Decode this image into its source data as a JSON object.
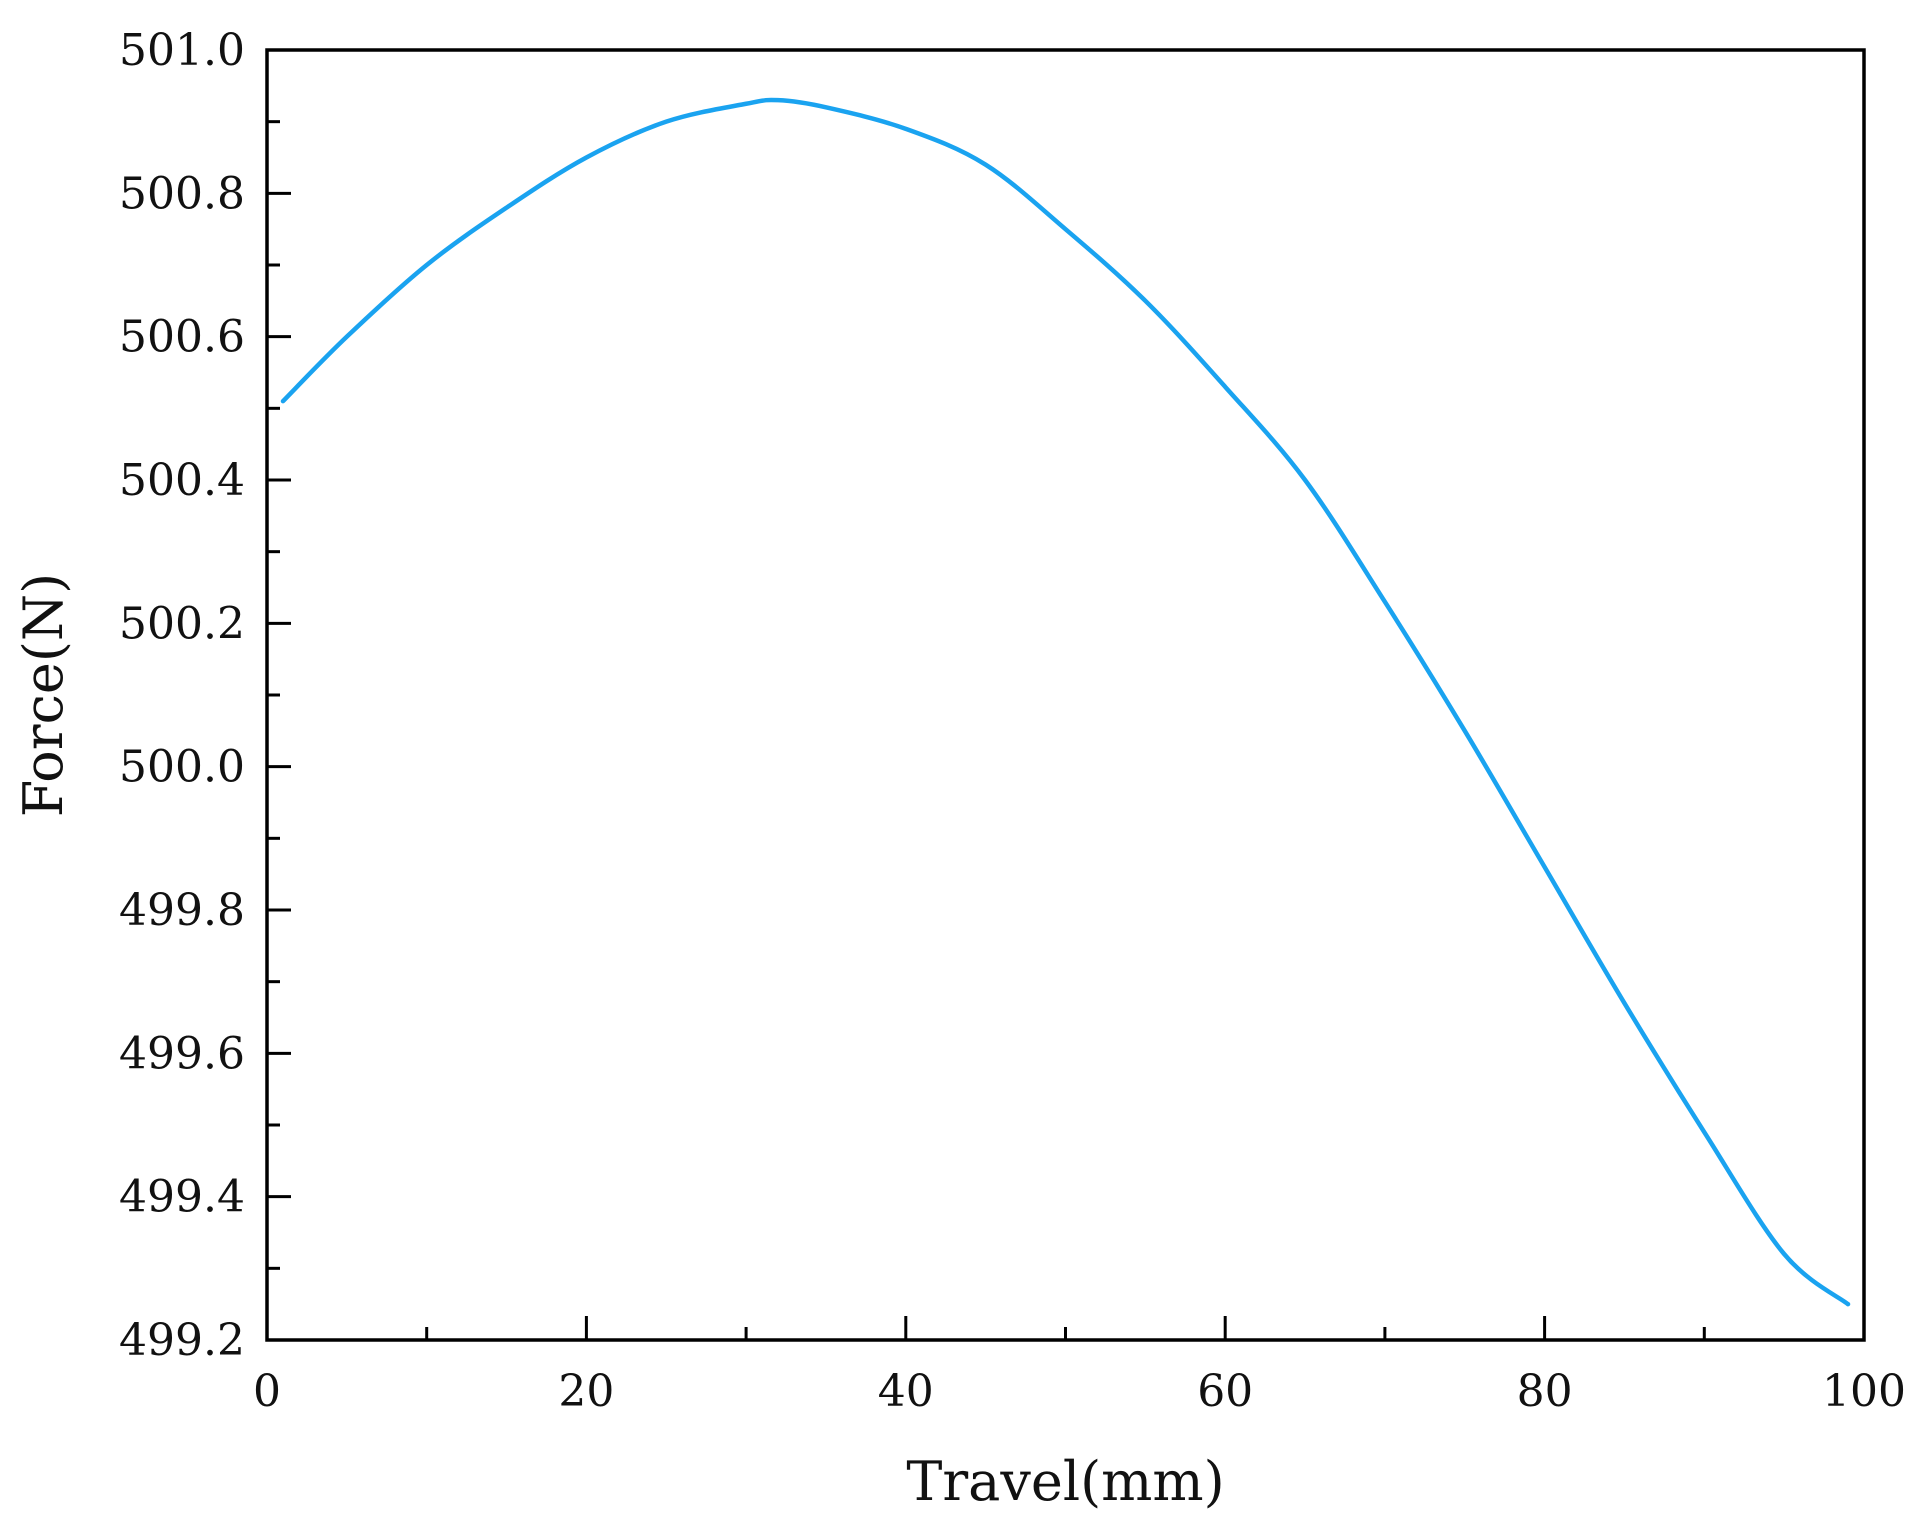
{
  "chart_data": {
    "type": "line",
    "title": "",
    "xlabel": "Travel(mm)",
    "ylabel": "Force(N)",
    "xlim": [
      0,
      100
    ],
    "ylim": [
      499.2,
      501.0
    ],
    "xticks": [
      0,
      20,
      40,
      60,
      80,
      100
    ],
    "xtick_labels": [
      "0",
      "20",
      "40",
      "60",
      "80",
      "100"
    ],
    "yticks": [
      499.2,
      499.4,
      499.6,
      499.8,
      500.0,
      500.2,
      500.4,
      500.6,
      500.8,
      501.0
    ],
    "ytick_labels": [
      "499.2",
      "499.4",
      "499.6",
      "499.8",
      "500.0",
      "500.2",
      "500.4",
      "500.6",
      "500.8",
      "501.0"
    ],
    "x_minor_step": 10,
    "y_minor_step": 0.1,
    "grid": false,
    "legend": "none",
    "series": [
      {
        "color": "#1aa3f0",
        "x": [
          1,
          5,
          10,
          15,
          20,
          25,
          30,
          32,
          35,
          40,
          45,
          50,
          55,
          60,
          65,
          70,
          75,
          80,
          85,
          90,
          95,
          99
        ],
        "y": [
          500.51,
          500.6,
          500.7,
          500.78,
          500.85,
          500.9,
          500.925,
          500.93,
          500.92,
          500.89,
          500.84,
          500.75,
          500.65,
          500.53,
          500.4,
          500.23,
          500.05,
          499.86,
          499.67,
          499.49,
          499.32,
          499.25
        ]
      }
    ]
  }
}
